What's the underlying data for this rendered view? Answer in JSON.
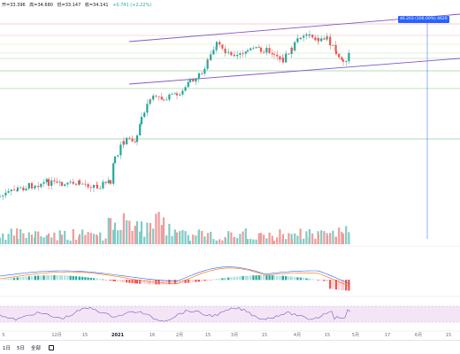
{
  "ohlc": {
    "open_label": "开=33.396",
    "high_label": "高=34.680",
    "low_label": "低=33.147",
    "close_label": "收=34.141",
    "change_label": "+0.741 (+2.22%)"
  },
  "price_tag": "46.203 (100.00%) 4620",
  "time_axis": [
    {
      "label": "5",
      "bold": false
    },
    {
      "label": "12月",
      "bold": false
    },
    {
      "label": "15",
      "bold": false
    },
    {
      "label": "2021",
      "bold": true
    },
    {
      "label": "16",
      "bold": false
    },
    {
      "label": "2月",
      "bold": false
    },
    {
      "label": "15",
      "bold": false
    },
    {
      "label": "3月",
      "bold": false
    },
    {
      "label": "15",
      "bold": false
    },
    {
      "label": "4月",
      "bold": false
    },
    {
      "label": "15",
      "bold": false
    },
    {
      "label": "5月",
      "bold": false
    },
    {
      "label": "17",
      "bold": false
    },
    {
      "label": "6月",
      "bold": false
    },
    {
      "label": "15",
      "bold": false
    }
  ],
  "toolbar": {
    "tf_1d": "1日",
    "tf_5d": "5日",
    "tf_all": "全部"
  },
  "colors": {
    "up": "#26a69a",
    "down": "#ef5350",
    "channel": "#7e57c2",
    "fib_line": "#ef9a9a",
    "green_line": "#66bb6a",
    "blue_line": "#2962ff",
    "rsi_fill": "#f3e5f5",
    "rsi_line": "#7e57c2"
  }
}
